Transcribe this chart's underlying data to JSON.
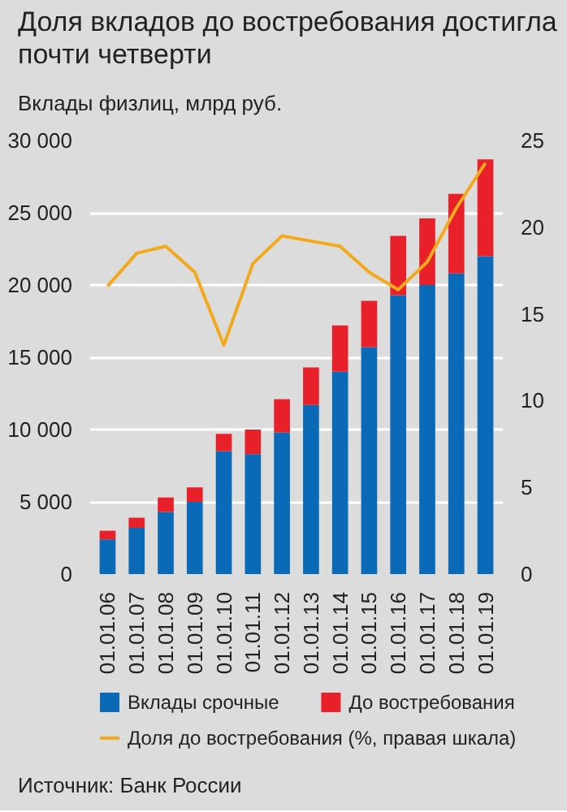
{
  "chart_data": {
    "type": "bar",
    "title": "Доля вкладов до востребования достигла почти четверти",
    "subtitle": "Вклады физлиц, млрд руб.",
    "categories": [
      "01.01.06",
      "01.01.07",
      "01.01.08",
      "01.01.09",
      "01.01.10",
      "01.01.11",
      "01.01.12",
      "01.01.13",
      "01.01.14",
      "01.01.15",
      "01.01.16",
      "01.01.17",
      "01.01.18",
      "01.01.19"
    ],
    "stacked": true,
    "series": [
      {
        "name": "Вклады срочные",
        "color": "#0a6ab8",
        "values": [
          2400,
          3200,
          4300,
          5000,
          8500,
          8300,
          9800,
          11700,
          14000,
          15700,
          19300,
          20000,
          20800,
          22000
        ]
      },
      {
        "name": "До востребования",
        "color": "#e8202a",
        "values": [
          600,
          700,
          1000,
          1000,
          1200,
          1700,
          2300,
          2600,
          3200,
          3200,
          4100,
          4600,
          5500,
          6700
        ]
      },
      {
        "name": "Доля до востребования (%, правая шкала)",
        "type": "line",
        "axis": "y2",
        "color": "#f2a91c",
        "values": [
          16.6,
          18.5,
          18.9,
          17.4,
          13.2,
          17.9,
          19.5,
          19.2,
          18.9,
          17.4,
          16.4,
          18.0,
          21.1,
          23.7
        ]
      }
    ],
    "ylim": [
      0,
      30000
    ],
    "yticks": [
      0,
      {
        "value": 5000,
        "label": "5 000"
      },
      {
        "value": 10000,
        "label": "10 000"
      },
      {
        "value": 15000,
        "label": "15 000"
      },
      {
        "value": 20000,
        "label": "20 000"
      },
      {
        "value": 25000,
        "label": "25 000"
      },
      {
        "value": 30000,
        "label": "30 000"
      }
    ],
    "y2lim": [
      0,
      25
    ],
    "y2ticks": [
      0,
      5,
      10,
      15,
      20,
      25
    ],
    "grid": "y",
    "legend": "bottom",
    "marker": "none",
    "line_style": "solid",
    "annotations": [
      "Источник: Банк России"
    ]
  }
}
